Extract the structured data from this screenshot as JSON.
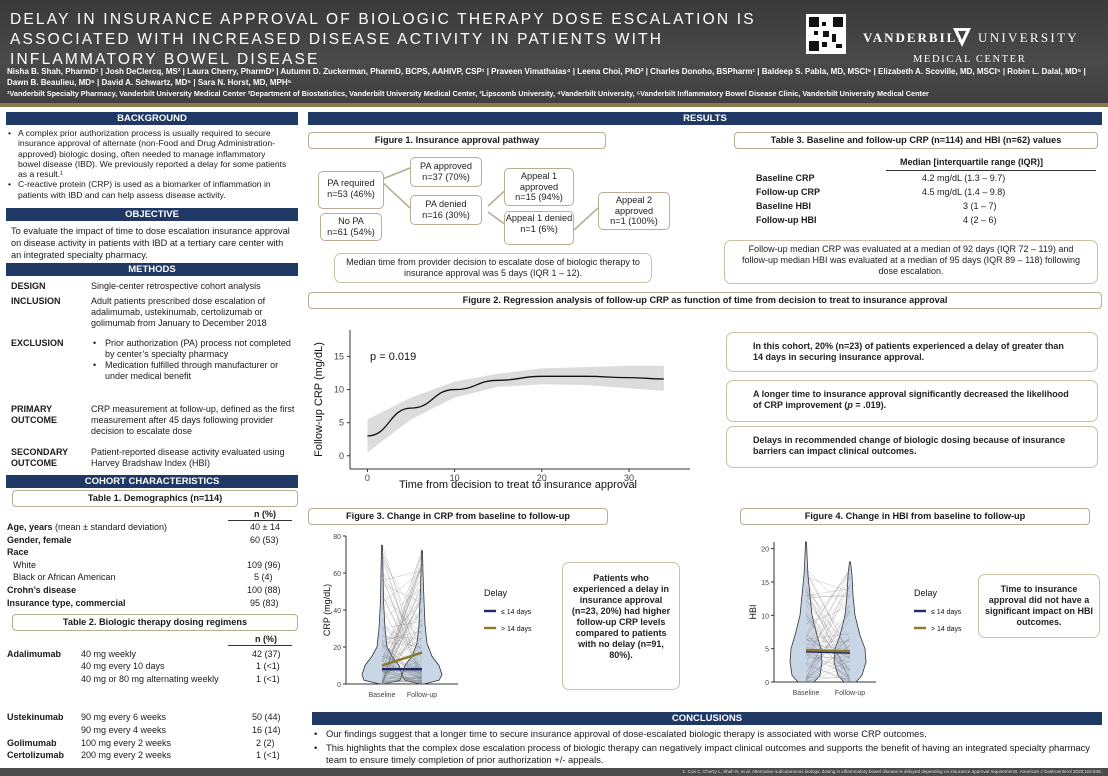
{
  "header": {
    "title": "DELAY IN INSURANCE APPROVAL OF BIOLOGIC THERAPY DOSE ESCALATION IS ASSOCIATED WITH INCREASED DISEASE ACTIVITY IN PATIENTS WITH INFLAMMATORY BOWEL DISEASE",
    "logo_word1": "VANDERBILT",
    "logo_word2": "UNIVERSITY",
    "logo_sub": "MEDICAL CENTER",
    "authors": "Nisha B. Shah, PharmD¹ | Josh DeClercq, MS² | Laura Cherry, PharmD³ | Autumn D. Zuckerman, PharmD, BCPS, AAHIVP, CSP¹ | Praveen Vimathaias⁴ | Leena Choi, PhD² | Charles Donoho, BSPharm¹ | Baldeep S. Pabla, MD, MSCI⁵ | Elizabeth A. Scoville, MD, MSCI⁵ | Robin L. Dalal, MD⁵ | Dawn B. Beaulieu, MD⁵ | David A. Schwartz, MD⁵ | Sara N. Horst, MD, MPH⁵",
    "affiliations": "¹Vanderbilt Specialty Pharmacy, Vanderbilt University Medical Center ²Department of Biostatistics, Vanderbilt University Medical Center, ³Lipscomb University, ⁴Vanderbilt University, ⁵Vanderbilt Inflammatory Bowel Disease Clinic, Vanderbilt University Medical Center"
  },
  "sections": {
    "background": "BACKGROUND",
    "objective": "OBJECTIVE",
    "methods": "METHODS",
    "cohort": "COHORT CHARACTERISTICS",
    "results": "RESULTS",
    "conclusions": "CONCLUSIONS"
  },
  "background": {
    "bullet1": "A complex prior authorization process is usually required to secure insurance approval of alternate (non-Food and Drug Administration-approved) biologic dosing, often needed to manage inflammatory bowel disease (IBD). We previously reported a delay for some patients as a result.¹",
    "bullet2": "C-reactive protein (CRP) is used as a biomarker of inflammation in patients with IBD and can help assess disease activity."
  },
  "objective": "To evaluate the impact of time to dose escalation insurance approval on disease activity in patients with IBD at a tertiary care center with an integrated specialty pharmacy.",
  "methods": {
    "design_label": "DESIGN",
    "design": "Single-center retrospective cohort analysis",
    "inclusion_label": "INCLUSION",
    "inclusion": "Adult patients prescribed dose escalation of adalimumab, ustekinumab, certolizumab or golimumab from January to December 2018",
    "exclusion_label": "EXCLUSION",
    "exclusion1": "Prior authorization (PA) process not completed by center’s specialty pharmacy",
    "exclusion2": "Medication fulfilled through manufacturer or under medical benefit",
    "primary_label1": "PRIMARY",
    "primary_label2": "OUTCOME",
    "primary": "CRP measurement at follow-up, defined as the first measurement after 45 days following provider decision to escalate dose",
    "secondary_label1": "SECONDARY",
    "secondary_label2": "OUTCOME",
    "secondary": "Patient-reported disease activity evaluated using Harvey Bradshaw Index (HBI)"
  },
  "table1": {
    "title": "Table 1. Demographics (n=114)",
    "col": "n (%)",
    "rows": {
      "age_label": "Age, years",
      "age_sub": " (mean ± standard deviation)",
      "age_val": "40 ± 14",
      "gender": "Gender, female",
      "gender_val": "60 (53)",
      "race": "Race",
      "white": "White",
      "white_val": "109 (96)",
      "black": "Black or African American",
      "black_val": "5 (4)",
      "crohns": "Crohn’s disease",
      "crohns_val": "100 (88)",
      "insurance": "Insurance type, commercial",
      "insurance_val": "95 (83)"
    }
  },
  "table2": {
    "title": "Table 2. Biologic therapy dosing regimens",
    "col": "n (%)",
    "adalimumab": "Adalimumab",
    "a1": "40 mg weekly",
    "a1v": "42 (37)",
    "a2": "40 mg every 10 days",
    "a2v": "1 (<1)",
    "a3": "40 mg or 80 mg alternating weekly",
    "a3v": "1 (<1)",
    "ustekinumab": "Ustekinumab",
    "u1": "90 mg every 6 weeks",
    "u1v": "50 (44)",
    "u2": "90 mg every 4 weeks",
    "u2v": "16 (14)",
    "golimumab": "Golimumab",
    "g1": "100 mg every 2 weeks",
    "g1v": "2 (2)",
    "certolizumab": "Certolizumab",
    "c1": "200 mg every 2 weeks",
    "c1v": "1 (<1)"
  },
  "figure1": {
    "title": "Figure 1. Insurance approval pathway",
    "pa_required": "PA required",
    "pa_required_n": "n=53 (46%)",
    "no_pa": "No PA",
    "no_pa_n": "n=61 (54%)",
    "pa_approved": "PA approved",
    "pa_approved_n": "n=37 (70%)",
    "pa_denied": "PA denied",
    "pa_denied_n": "n=16 (30%)",
    "appeal1_approved": "Appeal 1 approved",
    "appeal1_approved_n": "n=15 (94%)",
    "appeal1_denied": "Appeal 1 denied",
    "appeal1_denied_n": "n=1 (6%)",
    "appeal2_approved": "Appeal 2 approved",
    "appeal2_approved_n": "n=1 (100%)",
    "median_note": "Median time from provider decision to escalate dose of biologic therapy to insurance approval was 5 days (IQR 1 – 12)."
  },
  "table3": {
    "title": "Table 3. Baseline and follow-up CRP (n=114) and HBI (n=62) values",
    "col": "Median [interquartile range (IQR)]",
    "r1": "Baseline CRP",
    "r1v": "4.2 mg/dL (1.3 – 9.7)",
    "r2": "Follow-up CRP",
    "r2v": "4.5 mg/dL (1.4 – 9.8)",
    "r3": "Baseline HBI",
    "r3v": "3 (1 – 7)",
    "r4": "Follow-up HBI",
    "r4v": "4 (2 – 6)",
    "note": "Follow-up median CRP was evaluated at a median of 92 days (IQR 72 – 119) and follow-up median HBI was evaluated at a median of 95 days (IQR 89 – 118) following dose escalation."
  },
  "figure2": {
    "title": "Figure 2. Regression analysis of follow-up CRP as function of time from decision to treat to insurance approval",
    "pvalue": "p = 0.019",
    "ylabel": "Follow-up CRP  (mg/dL)",
    "xlabel": "Time from decision to treat to insurance approval",
    "yticks": [
      "0",
      "5",
      "10",
      "15"
    ],
    "xticks": [
      "0",
      "10",
      "20",
      "30"
    ],
    "callout1": "In this cohort, 20% (n=23) of patients experienced a delay of greater than 14 days in securing insurance approval.",
    "callout2a": "A longer time to insurance approval significantly decreased the likelihood of CRP improvement (",
    "callout2p": "p",
    "callout2b": " = .019).",
    "callout3": "Delays in recommended change of biologic dosing because of insurance barriers can impact clinical outcomes."
  },
  "figure3": {
    "title": "Figure 3. Change in CRP from baseline to follow-up",
    "ylabel": "CRP (mg/dL)",
    "yticks": [
      "0",
      "20",
      "40",
      "60",
      "80"
    ],
    "xticks": [
      "Baseline",
      "Follow-up"
    ],
    "legend_title": "Delay",
    "legend1": "≤ 14 days",
    "legend2": "> 14 days",
    "callout": "Patients who experienced a delay in insurance approval (n=23, 20%) had higher follow-up CRP levels compared to patients with no delay (n=91, 80%)."
  },
  "figure4": {
    "title": "Figure 4. Change in HBI from baseline to follow-up",
    "ylabel": "HBI",
    "yticks": [
      "0",
      "5",
      "10",
      "15",
      "20"
    ],
    "xticks": [
      "Baseline",
      "Follow-up"
    ],
    "legend_title": "Delay",
    "legend1": "≤ 14 days",
    "legend2": "> 14 days",
    "callout": "Time to insurance approval did not have a significant impact on HBI outcomes."
  },
  "conclusions": {
    "bullet1": "Our findings suggest that a longer time to secure insurance approval of dose-escalated biologic therapy is associated with worse CRP outcomes.",
    "bullet2": "This highlights that the complex dose escalation process of biologic therapy can negatively impact clinical outcomes and supports the benefit of having an integrated specialty pharmacy team to ensure timely completion of prior authorization +/- appeals."
  },
  "footnote": "1. Cox C, Cherry L, Shah N, et al. Alternative subcutaneous biologic dosing in inflammatory bowel disease is delayed depending on insurance approval requirements. American J Gastroenterol 2020;115:645.",
  "colors": {
    "navy": "#1f3864",
    "gold": "#8a7a4a",
    "short_delay": "#1f2a6b",
    "long_delay": "#8c7a2b"
  },
  "chart_data": [
    {
      "type": "line",
      "name": "figure2",
      "x": [
        0,
        5,
        10,
        15,
        20,
        25,
        30,
        34
      ],
      "series": [
        {
          "values": [
            3.0,
            7.2,
            10.0,
            11.4,
            12.0,
            12.0,
            11.8,
            11.6
          ]
        }
      ],
      "band_low": [
        0.5,
        5.5,
        8.8,
        10.4,
        10.8,
        10.7,
        10.2,
        9.8
      ],
      "band_high": [
        5.5,
        8.8,
        11.2,
        12.4,
        13.2,
        13.4,
        13.6,
        13.6
      ],
      "xlabel": "Time from decision to treat to insurance approval",
      "ylabel": "Follow-up CRP  (mg/dL)",
      "xlim": [
        -2,
        37
      ],
      "ylim": [
        -2,
        19
      ]
    },
    {
      "type": "line",
      "name": "figure3",
      "categories": [
        "Baseline",
        "Follow-up"
      ],
      "series": [
        {
          "name": "≤ 14 days",
          "values": [
            8,
            8
          ]
        },
        {
          "name": "> 14 days",
          "values": [
            10,
            17
          ]
        }
      ],
      "ylim": [
        0,
        80
      ]
    },
    {
      "type": "line",
      "name": "figure4",
      "categories": [
        "Baseline",
        "Follow-up"
      ],
      "series": [
        {
          "name": "≤ 14 days",
          "values": [
            4.6,
            4.4
          ]
        },
        {
          "name": "> 14 days",
          "values": [
            4.8,
            4.6
          ]
        }
      ],
      "ylim": [
        0,
        21
      ]
    }
  ]
}
